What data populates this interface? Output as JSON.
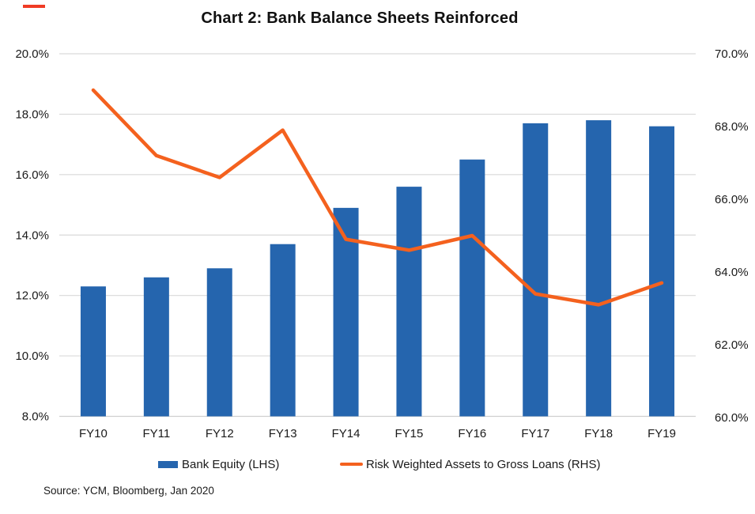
{
  "title": "Chart 2: Bank Balance Sheets Reinforced",
  "source": "Source: YCM, Bloomberg, Jan 2020",
  "colors": {
    "bar": "#2565AE",
    "line": "#F4611E",
    "grid": "#D9D9D9",
    "axis_line": "#CFCFCF",
    "text": "#1A1A1A",
    "red_mark": "#F03B25"
  },
  "chart_data": {
    "type": "bar",
    "title": "Chart 2: Bank Balance Sheets Reinforced",
    "categories": [
      "FY10",
      "FY11",
      "FY12",
      "FY13",
      "FY14",
      "FY15",
      "FY16",
      "FY17",
      "FY18",
      "FY19"
    ],
    "series": [
      {
        "name": "Bank Equity (LHS)",
        "type": "bar",
        "axis": "left",
        "color": "#2565AE",
        "values": [
          12.3,
          12.6,
          12.9,
          13.7,
          14.9,
          15.6,
          16.5,
          17.7,
          17.8,
          17.6
        ]
      },
      {
        "name": "Risk Weighted Assets to Gross Loans (RHS)",
        "type": "line",
        "axis": "right",
        "color": "#F4611E",
        "values": [
          69.0,
          67.2,
          66.6,
          67.9,
          64.9,
          64.6,
          65.0,
          63.4,
          63.1,
          63.7
        ]
      }
    ],
    "left_axis_ticks": [
      "20.0%",
      "18.0%",
      "16.0%",
      "14.0%",
      "12.0%",
      "10.0%",
      "8.0%"
    ],
    "right_axis_ticks": [
      "70.0%",
      "68.0%",
      "66.0%",
      "64.0%",
      "62.0%",
      "60.0%"
    ],
    "left_range": [
      8,
      20
    ],
    "right_range": [
      60,
      70
    ],
    "grid": true,
    "legend_position": "bottom"
  }
}
